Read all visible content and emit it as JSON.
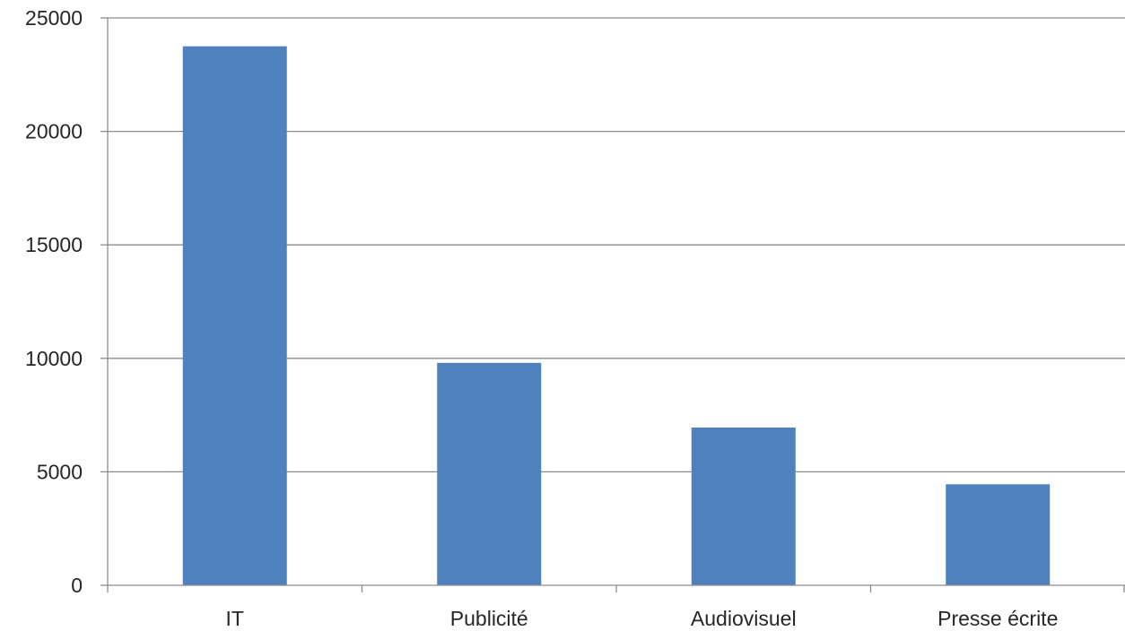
{
  "chart_data": {
    "type": "bar",
    "title": "",
    "xlabel": "",
    "ylabel": "",
    "categories": [
      "IT",
      "Publicité",
      "Audiovisuel",
      "Presse écrite"
    ],
    "values": [
      23750,
      9800,
      6950,
      4450
    ],
    "ylim": [
      0,
      25000
    ],
    "yticks": [
      0,
      5000,
      10000,
      15000,
      20000,
      25000
    ],
    "grid": true,
    "legend": "none",
    "bar_color": "#4f81bd",
    "grid_color": "#8c8c8c",
    "text_color": "#262626"
  }
}
